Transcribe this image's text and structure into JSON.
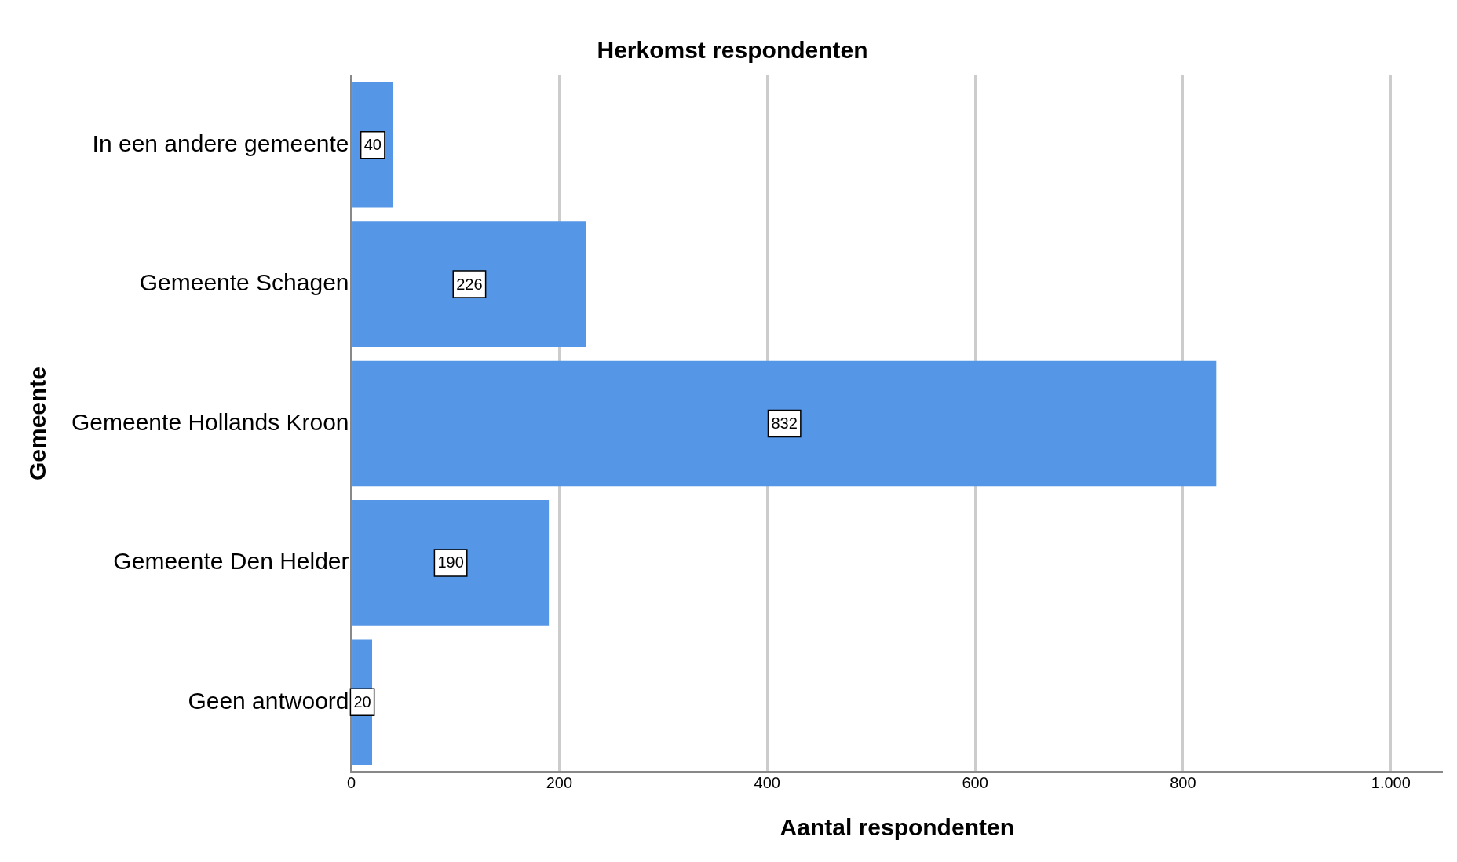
{
  "chart_data": {
    "type": "bar",
    "orientation": "horizontal",
    "title": "Herkomst respondenten",
    "xlabel": "Aantal respondenten",
    "ylabel": "Gemeente",
    "categories": [
      "In een andere gemeente",
      "Gemeente Schagen",
      "Gemeente Hollands Kroon",
      "Gemeente Den Helder",
      "Geen antwoord"
    ],
    "values": [
      40,
      226,
      832,
      190,
      20
    ],
    "color": "#5596e6",
    "xlim": [
      0,
      1050
    ],
    "xticks": [
      0,
      200,
      400,
      600,
      800,
      {
        "value": 1000,
        "label": "1.000"
      }
    ],
    "grid": "x",
    "data_labels": true,
    "legend": false
  }
}
